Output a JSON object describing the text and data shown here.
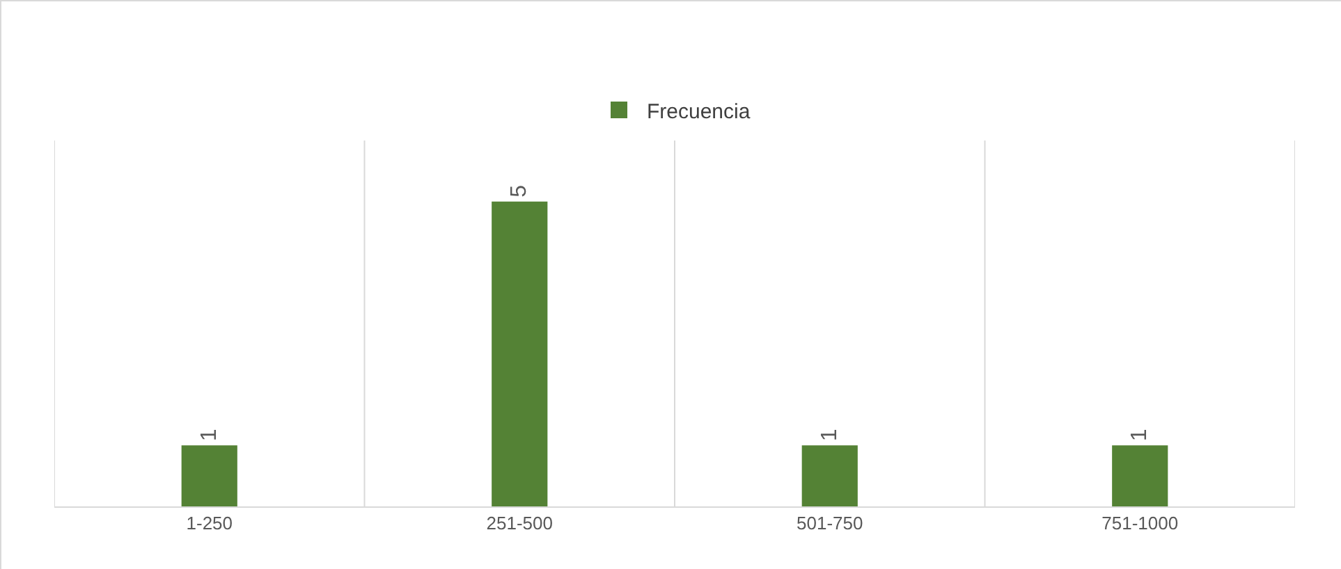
{
  "chart_data": {
    "type": "bar",
    "categories": [
      "1-250",
      "251-500",
      "501-750",
      "751-1000"
    ],
    "series": [
      {
        "name": "Frecuencia",
        "color": "#548235",
        "values": [
          1,
          5,
          1,
          1
        ]
      }
    ],
    "ylim": [
      0,
      6
    ],
    "tick_labels": "x",
    "grid": "x",
    "legend": "top",
    "data_labels": true
  }
}
